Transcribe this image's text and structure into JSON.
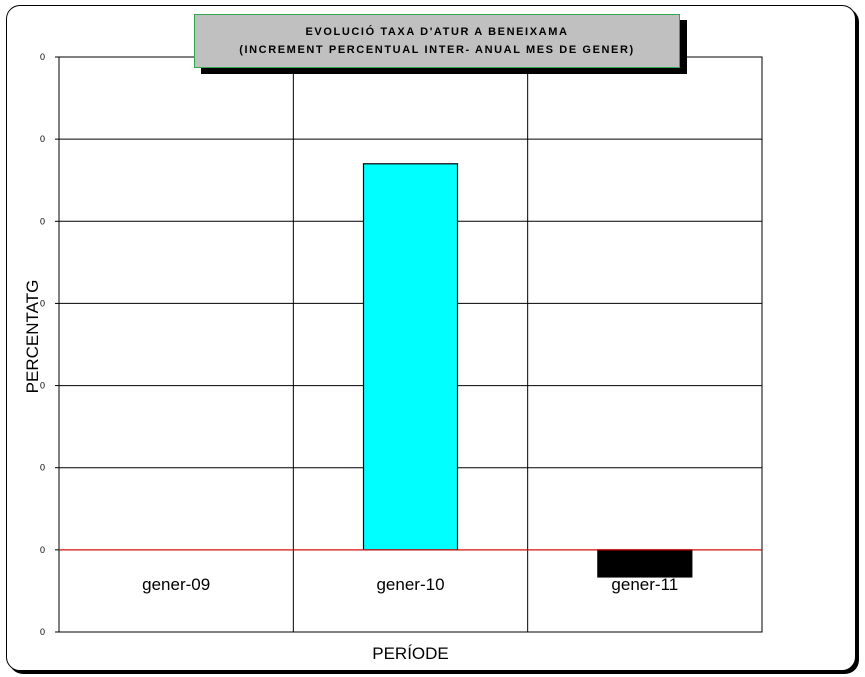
{
  "chart_data": {
    "type": "bar",
    "title_lines": [
      "EVOLUCIÓ TAXA D'ATUR A BENEIXAMA",
      "(INCREMENT PERCENTUAL INTER- ANUAL MES DE GENER)"
    ],
    "xlabel": "PERÍODE",
    "ylabel": "PERCENTATG",
    "categories": [
      "gener-09",
      "gener-10",
      "gener-11"
    ],
    "values": [
      0,
      0.47,
      -0.033
    ],
    "ylim": [
      -0.1,
      0.6
    ],
    "y_tick_values": [
      -0.1,
      0,
      0.1,
      0.2,
      0.3,
      0.4,
      0.5,
      0.6
    ],
    "y_tick_labels": [
      "0",
      "0",
      "0",
      "0",
      "0",
      "0",
      "0",
      "0"
    ],
    "bar_colors": [
      "#00ffff",
      "#00ffff",
      "#000000"
    ],
    "zero_line_color": "#ff0000",
    "grid": true,
    "legend": "none"
  }
}
